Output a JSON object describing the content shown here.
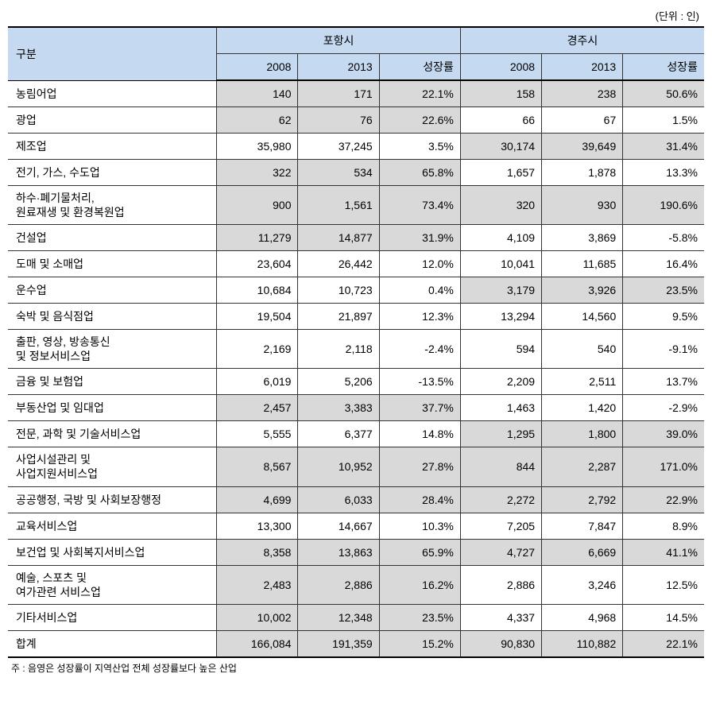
{
  "unit": "(단위 : 인)",
  "headers": {
    "category": "구분",
    "city1": "포항시",
    "city2": "경주시",
    "year1": "2008",
    "year2": "2013",
    "growth": "성장률"
  },
  "rows": [
    {
      "label": "농림어업",
      "c1_2008": "140",
      "c1_2013": "171",
      "c1_growth": "22.1%",
      "c1_shaded": true,
      "c2_2008": "158",
      "c2_2013": "238",
      "c2_growth": "50.6%",
      "c2_shaded": true
    },
    {
      "label": "광업",
      "c1_2008": "62",
      "c1_2013": "76",
      "c1_growth": "22.6%",
      "c1_shaded": true,
      "c2_2008": "66",
      "c2_2013": "67",
      "c2_growth": "1.5%",
      "c2_shaded": false
    },
    {
      "label": "제조업",
      "c1_2008": "35,980",
      "c1_2013": "37,245",
      "c1_growth": "3.5%",
      "c1_shaded": false,
      "c2_2008": "30,174",
      "c2_2013": "39,649",
      "c2_growth": "31.4%",
      "c2_shaded": true
    },
    {
      "label": "전기, 가스, 수도업",
      "c1_2008": "322",
      "c1_2013": "534",
      "c1_growth": "65.8%",
      "c1_shaded": true,
      "c2_2008": "1,657",
      "c2_2013": "1,878",
      "c2_growth": "13.3%",
      "c2_shaded": false
    },
    {
      "label": "하수·폐기물처리,\n원료재생 및 환경복원업",
      "c1_2008": "900",
      "c1_2013": "1,561",
      "c1_growth": "73.4%",
      "c1_shaded": true,
      "c2_2008": "320",
      "c2_2013": "930",
      "c2_growth": "190.6%",
      "c2_shaded": true,
      "multiline": true
    },
    {
      "label": "건설업",
      "c1_2008": "11,279",
      "c1_2013": "14,877",
      "c1_growth": "31.9%",
      "c1_shaded": true,
      "c2_2008": "4,109",
      "c2_2013": "3,869",
      "c2_growth": "-5.8%",
      "c2_shaded": false
    },
    {
      "label": "도매 및 소매업",
      "c1_2008": "23,604",
      "c1_2013": "26,442",
      "c1_growth": "12.0%",
      "c1_shaded": false,
      "c2_2008": "10,041",
      "c2_2013": "11,685",
      "c2_growth": "16.4%",
      "c2_shaded": false
    },
    {
      "label": "운수업",
      "c1_2008": "10,684",
      "c1_2013": "10,723",
      "c1_growth": "0.4%",
      "c1_shaded": false,
      "c2_2008": "3,179",
      "c2_2013": "3,926",
      "c2_growth": "23.5%",
      "c2_shaded": true
    },
    {
      "label": "숙박 및 음식점업",
      "c1_2008": "19,504",
      "c1_2013": "21,897",
      "c1_growth": "12.3%",
      "c1_shaded": false,
      "c2_2008": "13,294",
      "c2_2013": "14,560",
      "c2_growth": "9.5%",
      "c2_shaded": false
    },
    {
      "label": "출판, 영상, 방송통신\n및 정보서비스업",
      "c1_2008": "2,169",
      "c1_2013": "2,118",
      "c1_growth": "-2.4%",
      "c1_shaded": false,
      "c2_2008": "594",
      "c2_2013": "540",
      "c2_growth": "-9.1%",
      "c2_shaded": false,
      "multiline": true
    },
    {
      "label": "금융 및 보험업",
      "c1_2008": "6,019",
      "c1_2013": "5,206",
      "c1_growth": "-13.5%",
      "c1_shaded": false,
      "c2_2008": "2,209",
      "c2_2013": "2,511",
      "c2_growth": "13.7%",
      "c2_shaded": false
    },
    {
      "label": "부동산업 및 임대업",
      "c1_2008": "2,457",
      "c1_2013": "3,383",
      "c1_growth": "37.7%",
      "c1_shaded": true,
      "c2_2008": "1,463",
      "c2_2013": "1,420",
      "c2_growth": "-2.9%",
      "c2_shaded": false
    },
    {
      "label": "전문, 과학 및 기술서비스업",
      "c1_2008": "5,555",
      "c1_2013": "6,377",
      "c1_growth": "14.8%",
      "c1_shaded": false,
      "c2_2008": "1,295",
      "c2_2013": "1,800",
      "c2_growth": "39.0%",
      "c2_shaded": true
    },
    {
      "label": "사업시설관리 및\n사업지원서비스업",
      "c1_2008": "8,567",
      "c1_2013": "10,952",
      "c1_growth": "27.8%",
      "c1_shaded": true,
      "c2_2008": "844",
      "c2_2013": "2,287",
      "c2_growth": "171.0%",
      "c2_shaded": true,
      "multiline": true
    },
    {
      "label": "공공행정, 국방 및 사회보장행정",
      "c1_2008": "4,699",
      "c1_2013": "6,033",
      "c1_growth": "28.4%",
      "c1_shaded": true,
      "c2_2008": "2,272",
      "c2_2013": "2,792",
      "c2_growth": "22.9%",
      "c2_shaded": true
    },
    {
      "label": "교육서비스업",
      "c1_2008": "13,300",
      "c1_2013": "14,667",
      "c1_growth": "10.3%",
      "c1_shaded": false,
      "c2_2008": "7,205",
      "c2_2013": "7,847",
      "c2_growth": "8.9%",
      "c2_shaded": false
    },
    {
      "label": "보건업 및 사회복지서비스업",
      "c1_2008": "8,358",
      "c1_2013": "13,863",
      "c1_growth": "65.9%",
      "c1_shaded": true,
      "c2_2008": "4,727",
      "c2_2013": "6,669",
      "c2_growth": "41.1%",
      "c2_shaded": true
    },
    {
      "label": "예술, 스포츠 및\n여가관련 서비스업",
      "c1_2008": "2,483",
      "c1_2013": "2,886",
      "c1_growth": "16.2%",
      "c1_shaded": true,
      "c2_2008": "2,886",
      "c2_2013": "3,246",
      "c2_growth": "12.5%",
      "c2_shaded": false,
      "multiline": true
    },
    {
      "label": "기타서비스업",
      "c1_2008": "10,002",
      "c1_2013": "12,348",
      "c1_growth": "23.5%",
      "c1_shaded": true,
      "c2_2008": "4,337",
      "c2_2013": "4,968",
      "c2_growth": "14.5%",
      "c2_shaded": false
    },
    {
      "label": "합계",
      "c1_2008": "166,084",
      "c1_2013": "191,359",
      "c1_growth": "15.2%",
      "c1_shaded": true,
      "c2_2008": "90,830",
      "c2_2013": "110,882",
      "c2_growth": "22.1%",
      "c2_shaded": true
    }
  ],
  "footnote": "주 : 음영은 성장률이 지역산업 전체 성장률보다 높은 산업",
  "colors": {
    "header_bg": "#c5d9f1",
    "shaded_bg": "#d9d9d9",
    "border": "#333333",
    "border_thick": "#000000",
    "background": "#ffffff"
  }
}
